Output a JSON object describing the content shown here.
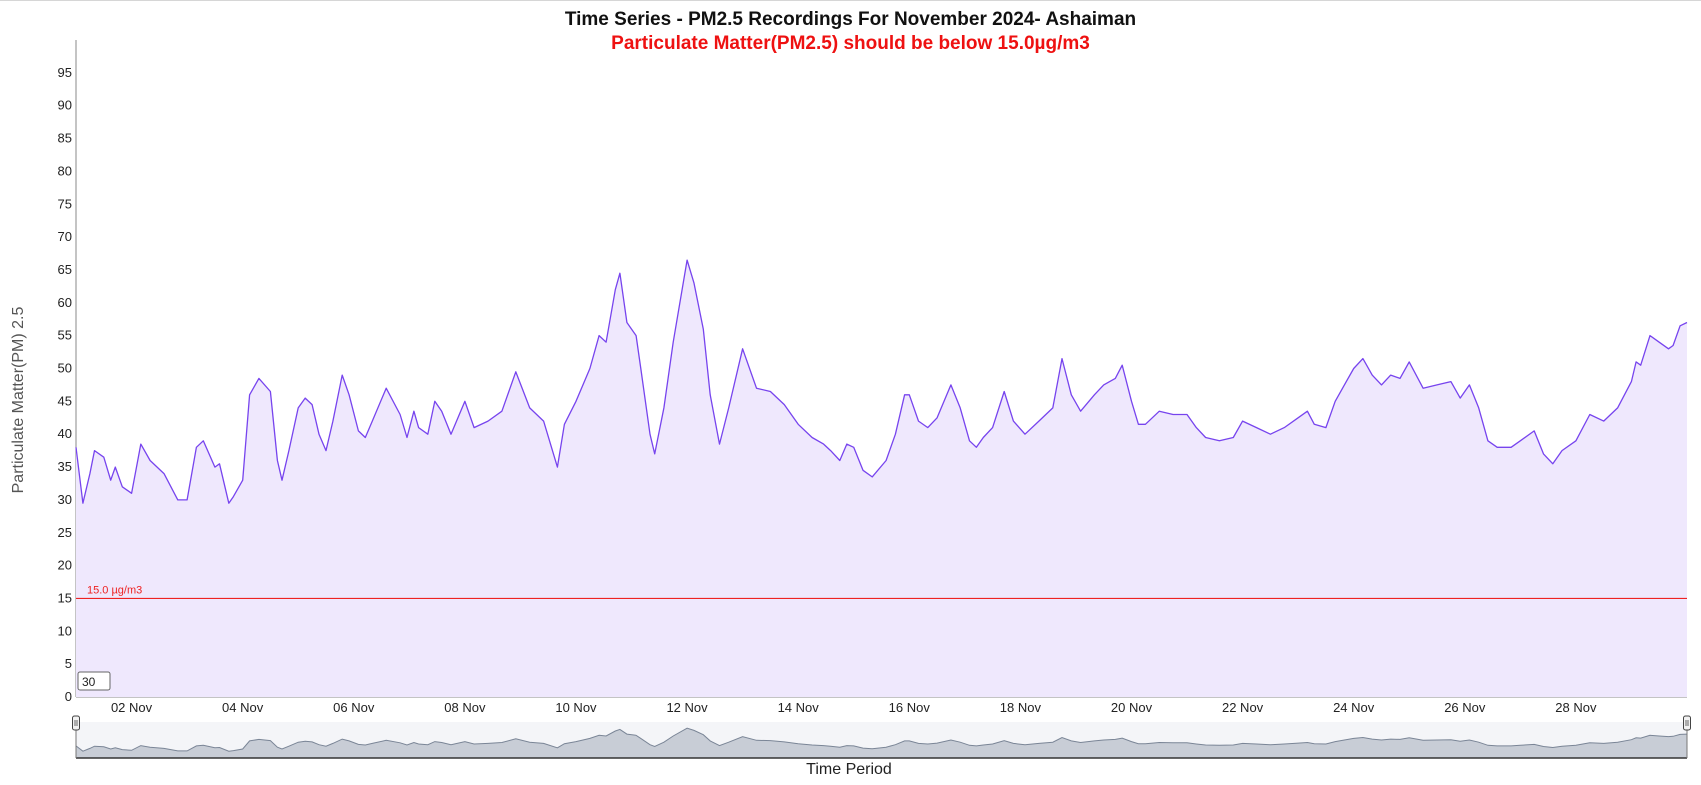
{
  "title": "Time Series - PM2.5 Recordings For November 2024- Ashaiman",
  "subtitle": "Particulate Matter(PM2.5) should be below 15.0µg/m3",
  "colors": {
    "subtitle": "#ee1111",
    "line": "#7744ee",
    "area": "#efe8fd",
    "threshold": "#ee2222",
    "axis": "#888888",
    "navigator_fill": "#c8cdd6",
    "navigator_line": "#7a8596"
  },
  "chart_data": {
    "type": "area",
    "title": "Time Series - PM2.5 Recordings For November 2024- Ashaiman",
    "subtitle": "Particulate Matter(PM2.5) should be below 15.0µg/m3",
    "xlabel": "Time Period",
    "ylabel": "Particulate Matter(PM) 2.5",
    "ylim": [
      0,
      100
    ],
    "yticks": [
      0,
      5,
      10,
      15,
      20,
      25,
      30,
      35,
      40,
      45,
      50,
      55,
      60,
      65,
      70,
      75,
      80,
      85,
      90,
      95
    ],
    "xlim": [
      "2024-11-01 00:00",
      "2024-11-30 00:00"
    ],
    "xticks": [
      {
        "date": "2024-11-02",
        "label": "02 Nov"
      },
      {
        "date": "2024-11-04",
        "label": "04 Nov"
      },
      {
        "date": "2024-11-06",
        "label": "06 Nov"
      },
      {
        "date": "2024-11-08",
        "label": "08 Nov"
      },
      {
        "date": "2024-11-10",
        "label": "10 Nov"
      },
      {
        "date": "2024-11-12",
        "label": "12 Nov"
      },
      {
        "date": "2024-11-14",
        "label": "14 Nov"
      },
      {
        "date": "2024-11-16",
        "label": "16 Nov"
      },
      {
        "date": "2024-11-18",
        "label": "18 Nov"
      },
      {
        "date": "2024-11-20",
        "label": "20 Nov"
      },
      {
        "date": "2024-11-22",
        "label": "22 Nov"
      },
      {
        "date": "2024-11-24",
        "label": "24 Nov"
      },
      {
        "date": "2024-11-26",
        "label": "26 Nov"
      },
      {
        "date": "2024-11-28",
        "label": "28 Nov"
      }
    ],
    "grid": false,
    "legend": "none",
    "threshold": {
      "value": 15,
      "label": "15.0 µg/m3"
    },
    "series": [
      {
        "points": [
          [
            "2024-11-01 00:00",
            38
          ],
          [
            "2024-11-01 03:00",
            29.5
          ],
          [
            "2024-11-01 06:00",
            34
          ],
          [
            "2024-11-01 08:00",
            37.5
          ],
          [
            "2024-11-01 12:00",
            36.5
          ],
          [
            "2024-11-01 15:00",
            33
          ],
          [
            "2024-11-01 17:00",
            35
          ],
          [
            "2024-11-01 20:00",
            32
          ],
          [
            "2024-11-02 00:00",
            31
          ],
          [
            "2024-11-02 04:00",
            38.5
          ],
          [
            "2024-11-02 08:00",
            36
          ],
          [
            "2024-11-02 14:00",
            34
          ],
          [
            "2024-11-02 20:00",
            30
          ],
          [
            "2024-11-03 00:00",
            30
          ],
          [
            "2024-11-03 04:00",
            38
          ],
          [
            "2024-11-03 07:00",
            39
          ],
          [
            "2024-11-03 12:00",
            35
          ],
          [
            "2024-11-03 14:00",
            35.5
          ],
          [
            "2024-11-03 18:00",
            29.5
          ],
          [
            "2024-11-03 20:00",
            30.5
          ],
          [
            "2024-11-04 00:00",
            33
          ],
          [
            "2024-11-04 03:00",
            46
          ],
          [
            "2024-11-04 07:00",
            48.5
          ],
          [
            "2024-11-04 12:00",
            46.5
          ],
          [
            "2024-11-04 15:00",
            36
          ],
          [
            "2024-11-04 17:00",
            33
          ],
          [
            "2024-11-04 20:00",
            37.5
          ],
          [
            "2024-11-05 00:00",
            44
          ],
          [
            "2024-11-05 03:00",
            45.5
          ],
          [
            "2024-11-05 06:00",
            44.5
          ],
          [
            "2024-11-05 09:00",
            40
          ],
          [
            "2024-11-05 12:00",
            37.5
          ],
          [
            "2024-11-05 15:00",
            42
          ],
          [
            "2024-11-05 19:00",
            49
          ],
          [
            "2024-11-05 22:00",
            46
          ],
          [
            "2024-11-06 02:00",
            40.5
          ],
          [
            "2024-11-06 05:00",
            39.5
          ],
          [
            "2024-11-06 08:00",
            42
          ],
          [
            "2024-11-06 14:00",
            47
          ],
          [
            "2024-11-06 20:00",
            43
          ],
          [
            "2024-11-06 23:00",
            39.5
          ],
          [
            "2024-11-07 02:00",
            43.5
          ],
          [
            "2024-11-07 04:00",
            41
          ],
          [
            "2024-11-07 08:00",
            40
          ],
          [
            "2024-11-07 11:00",
            45
          ],
          [
            "2024-11-07 14:00",
            43.5
          ],
          [
            "2024-11-07 18:00",
            40
          ],
          [
            "2024-11-08 00:00",
            45
          ],
          [
            "2024-11-08 04:00",
            41
          ],
          [
            "2024-11-08 10:00",
            42
          ],
          [
            "2024-11-08 16:00",
            43.5
          ],
          [
            "2024-11-08 22:00",
            49.5
          ],
          [
            "2024-11-09 04:00",
            44
          ],
          [
            "2024-11-09 10:00",
            42
          ],
          [
            "2024-11-09 16:00",
            35
          ],
          [
            "2024-11-09 19:00",
            41.5
          ],
          [
            "2024-11-10 00:00",
            45
          ],
          [
            "2024-11-10 06:00",
            50
          ],
          [
            "2024-11-10 10:00",
            55
          ],
          [
            "2024-11-10 13:00",
            54
          ],
          [
            "2024-11-10 17:00",
            62
          ],
          [
            "2024-11-10 19:00",
            64.5
          ],
          [
            "2024-11-10 22:00",
            57
          ],
          [
            "2024-11-11 02:00",
            55
          ],
          [
            "2024-11-11 04:00",
            50
          ],
          [
            "2024-11-11 08:00",
            40
          ],
          [
            "2024-11-11 10:00",
            37
          ],
          [
            "2024-11-11 14:00",
            44
          ],
          [
            "2024-11-11 18:00",
            54
          ],
          [
            "2024-11-12 00:00",
            66.5
          ],
          [
            "2024-11-12 03:00",
            63
          ],
          [
            "2024-11-12 07:00",
            56
          ],
          [
            "2024-11-12 10:00",
            46
          ],
          [
            "2024-11-12 14:00",
            38.5
          ],
          [
            "2024-11-12 18:00",
            44
          ],
          [
            "2024-11-13 00:00",
            53
          ],
          [
            "2024-11-13 06:00",
            47
          ],
          [
            "2024-11-13 12:00",
            46.5
          ],
          [
            "2024-11-13 18:00",
            44.5
          ],
          [
            "2024-11-14 00:00",
            41.5
          ],
          [
            "2024-11-14 06:00",
            39.5
          ],
          [
            "2024-11-14 11:00",
            38.5
          ],
          [
            "2024-11-14 14:00",
            37.5
          ],
          [
            "2024-11-14 18:00",
            36
          ],
          [
            "2024-11-14 21:00",
            38.5
          ],
          [
            "2024-11-15 00:00",
            38
          ],
          [
            "2024-11-15 04:00",
            34.5
          ],
          [
            "2024-11-15 08:00",
            33.5
          ],
          [
            "2024-11-15 14:00",
            36
          ],
          [
            "2024-11-15 18:00",
            40
          ],
          [
            "2024-11-15 22:00",
            46
          ],
          [
            "2024-11-16 00:00",
            46
          ],
          [
            "2024-11-16 04:00",
            42
          ],
          [
            "2024-11-16 08:00",
            41
          ],
          [
            "2024-11-16 12:00",
            42.5
          ],
          [
            "2024-11-16 18:00",
            47.5
          ],
          [
            "2024-11-16 22:00",
            44
          ],
          [
            "2024-11-17 02:00",
            39
          ],
          [
            "2024-11-17 05:00",
            38
          ],
          [
            "2024-11-17 08:00",
            39.5
          ],
          [
            "2024-11-17 12:00",
            41
          ],
          [
            "2024-11-17 17:00",
            46.5
          ],
          [
            "2024-11-17 21:00",
            42
          ],
          [
            "2024-11-18 02:00",
            40
          ],
          [
            "2024-11-18 08:00",
            42
          ],
          [
            "2024-11-18 14:00",
            44
          ],
          [
            "2024-11-18 18:00",
            51.5
          ],
          [
            "2024-11-18 22:00",
            46
          ],
          [
            "2024-11-19 02:00",
            43.5
          ],
          [
            "2024-11-19 08:00",
            46
          ],
          [
            "2024-11-19 12:00",
            47.5
          ],
          [
            "2024-11-19 17:00",
            48.5
          ],
          [
            "2024-11-19 20:00",
            50.5
          ],
          [
            "2024-11-20 00:00",
            45
          ],
          [
            "2024-11-20 03:00",
            41.5
          ],
          [
            "2024-11-20 06:00",
            41.5
          ],
          [
            "2024-11-20 12:00",
            43.5
          ],
          [
            "2024-11-20 18:00",
            43
          ],
          [
            "2024-11-21 00:00",
            43
          ],
          [
            "2024-11-21 04:00",
            41
          ],
          [
            "2024-11-21 08:00",
            39.5
          ],
          [
            "2024-11-21 14:00",
            39
          ],
          [
            "2024-11-21 20:00",
            39.5
          ],
          [
            "2024-11-22 00:00",
            42
          ],
          [
            "2024-11-22 06:00",
            41
          ],
          [
            "2024-11-22 12:00",
            40
          ],
          [
            "2024-11-22 18:00",
            41
          ],
          [
            "2024-11-23 00:00",
            42.5
          ],
          [
            "2024-11-23 04:00",
            43.5
          ],
          [
            "2024-11-23 07:00",
            41.5
          ],
          [
            "2024-11-23 12:00",
            41
          ],
          [
            "2024-11-23 16:00",
            45
          ],
          [
            "2024-11-23 20:00",
            47.5
          ],
          [
            "2024-11-24 00:00",
            50
          ],
          [
            "2024-11-24 04:00",
            51.5
          ],
          [
            "2024-11-24 08:00",
            49
          ],
          [
            "2024-11-24 12:00",
            47.5
          ],
          [
            "2024-11-24 16:00",
            49
          ],
          [
            "2024-11-24 20:00",
            48.5
          ],
          [
            "2024-11-25 00:00",
            51
          ],
          [
            "2024-11-25 06:00",
            47
          ],
          [
            "2024-11-25 12:00",
            47.5
          ],
          [
            "2024-11-25 18:00",
            48
          ],
          [
            "2024-11-25 22:00",
            45.5
          ],
          [
            "2024-11-26 02:00",
            47.5
          ],
          [
            "2024-11-26 06:00",
            44
          ],
          [
            "2024-11-26 10:00",
            39
          ],
          [
            "2024-11-26 14:00",
            38
          ],
          [
            "2024-11-26 20:00",
            38
          ],
          [
            "2024-11-27 00:00",
            39
          ],
          [
            "2024-11-27 06:00",
            40.5
          ],
          [
            "2024-11-27 10:00",
            37
          ],
          [
            "2024-11-27 14:00",
            35.5
          ],
          [
            "2024-11-27 18:00",
            37.5
          ],
          [
            "2024-11-28 00:00",
            39
          ],
          [
            "2024-11-28 06:00",
            43
          ],
          [
            "2024-11-28 12:00",
            42
          ],
          [
            "2024-11-28 18:00",
            44
          ],
          [
            "2024-11-29 00:00",
            48
          ],
          [
            "2024-11-29 02:00",
            51
          ],
          [
            "2024-11-29 04:00",
            50.5
          ],
          [
            "2024-11-29 08:00",
            55
          ],
          [
            "2024-11-29 12:00",
            54
          ],
          [
            "2024-11-29 16:00",
            53
          ],
          [
            "2024-11-29 18:00",
            53.5
          ],
          [
            "2024-11-29 21:00",
            56.5
          ],
          [
            "2024-11-30 00:00",
            57
          ]
        ]
      }
    ],
    "value_box": "30"
  }
}
